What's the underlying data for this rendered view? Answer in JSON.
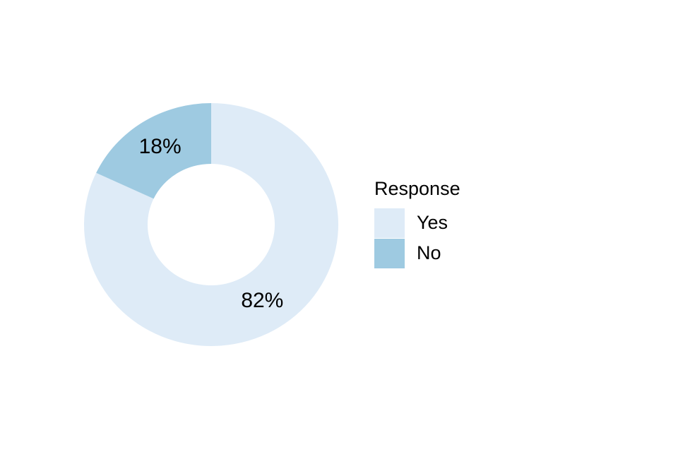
{
  "chart_data": {
    "type": "donut",
    "categories": [
      "Yes",
      "No"
    ],
    "values": [
      82,
      18
    ],
    "value_labels": [
      "82%",
      "18%"
    ],
    "colors": [
      "#deebf7",
      "#9ecae1"
    ],
    "legend_title": "Response",
    "legend": "right"
  }
}
